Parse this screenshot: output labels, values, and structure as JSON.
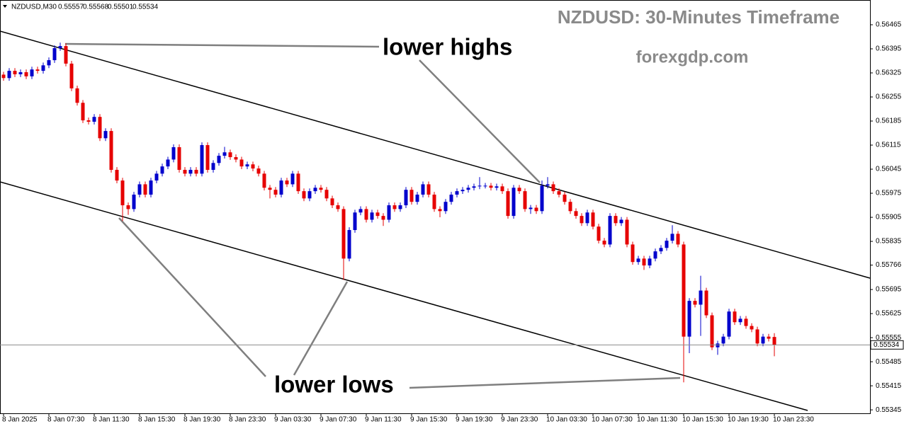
{
  "chart_data": {
    "type": "candlestick",
    "symbol": "NZDUSD,M30",
    "title": "NZDUSD: 30-Minutes Timeframe",
    "subtitle": "forexgdp.com",
    "annotations": [
      "lower highs",
      "lower lows"
    ],
    "up_color": "#0000cc",
    "down_color": "#e60000",
    "ylim": [
      0.55335,
      0.56537
    ],
    "yticks": [
      0.56465,
      0.56395,
      0.56325,
      0.56255,
      0.56185,
      0.56115,
      0.56045,
      0.55975,
      0.55905,
      0.55835,
      0.55766,
      0.55695,
      0.55625,
      0.55555,
      0.55485,
      0.55415,
      0.55345
    ],
    "xlim": [
      -0.625,
      152.875
    ],
    "xticks": [
      {
        "value": 0,
        "label": "8 Jan 2025"
      },
      {
        "value": 8,
        "label": "8 Jan 07:30"
      },
      {
        "value": 16,
        "label": "8 Jan 11:30"
      },
      {
        "value": 24,
        "label": "8 Jan 15:30"
      },
      {
        "value": 32,
        "label": "8 Jan 19:30"
      },
      {
        "value": 40,
        "label": "8 Jan 23:30"
      },
      {
        "value": 48,
        "label": "9 Jan 03:30"
      },
      {
        "value": 56,
        "label": "9 Jan 07:30"
      },
      {
        "value": 64,
        "label": "9 Jan 11:30"
      },
      {
        "value": 72,
        "label": "9 Jan 15:30"
      },
      {
        "value": 80,
        "label": "9 Jan 19:30"
      },
      {
        "value": 88,
        "label": "9 Jan 23:30"
      },
      {
        "value": 96,
        "label": "10 Jan 03:30"
      },
      {
        "value": 104,
        "label": "10 Jan 07:30"
      },
      {
        "value": 112,
        "label": "10 Jan 11:30"
      },
      {
        "value": 120,
        "label": "10 Jan 15:30"
      },
      {
        "value": 128,
        "label": "10 Jan 19:30"
      },
      {
        "value": 136,
        "label": "10 Jan 23:30"
      }
    ],
    "candles": [
      [
        0.5632,
        0.56328,
        0.56302,
        0.5631
      ],
      [
        0.5631,
        0.56339,
        0.56302,
        0.56331
      ],
      [
        0.56331,
        0.56339,
        0.56313,
        0.56321
      ],
      [
        0.56321,
        0.56335,
        0.56313,
        0.56327
      ],
      [
        0.56327,
        0.56335,
        0.56307,
        0.56315
      ],
      [
        0.56315,
        0.56343,
        0.56307,
        0.56335
      ],
      [
        0.56335,
        0.56343,
        0.56323,
        0.56331
      ],
      [
        0.56331,
        0.56355,
        0.56323,
        0.56347
      ],
      [
        0.56347,
        0.5637,
        0.56339,
        0.56362
      ],
      [
        0.56362,
        0.56405,
        0.56354,
        0.56397
      ],
      [
        0.56397,
        0.56413,
        0.56389,
        0.56403
      ],
      [
        0.56403,
        0.56411,
        0.56344,
        0.56352
      ],
      [
        0.56352,
        0.5636,
        0.56272,
        0.5628
      ],
      [
        0.5628,
        0.56288,
        0.5623,
        0.56238
      ],
      [
        0.56238,
        0.56246,
        0.56179,
        0.56187
      ],
      [
        0.56187,
        0.56195,
        0.56175,
        0.56183
      ],
      [
        0.56183,
        0.56205,
        0.56175,
        0.56197
      ],
      [
        0.56197,
        0.56205,
        0.56127,
        0.56135
      ],
      [
        0.56135,
        0.56164,
        0.56127,
        0.56156
      ],
      [
        0.56156,
        0.56164,
        0.56035,
        0.56043
      ],
      [
        0.56043,
        0.56051,
        0.56004,
        0.56012
      ],
      [
        0.56012,
        0.5602,
        0.55894,
        0.5594
      ],
      [
        0.5594,
        0.55948,
        0.55912,
        0.55929
      ],
      [
        0.55929,
        0.55979,
        0.55921,
        0.55971
      ],
      [
        0.55971,
        0.56009,
        0.55963,
        0.56001
      ],
      [
        0.56001,
        0.56009,
        0.55963,
        0.55971
      ],
      [
        0.55971,
        0.5602,
        0.55963,
        0.56012
      ],
      [
        0.56012,
        0.5604,
        0.56004,
        0.56032
      ],
      [
        0.56032,
        0.56061,
        0.56024,
        0.56053
      ],
      [
        0.56053,
        0.56081,
        0.56045,
        0.56073
      ],
      [
        0.56073,
        0.56117,
        0.56065,
        0.56109
      ],
      [
        0.56109,
        0.56117,
        0.56035,
        0.56043
      ],
      [
        0.56043,
        0.56051,
        0.56024,
        0.56032
      ],
      [
        0.56032,
        0.56051,
        0.56024,
        0.56043
      ],
      [
        0.56043,
        0.56051,
        0.56024,
        0.56032
      ],
      [
        0.56032,
        0.56123,
        0.56024,
        0.56115
      ],
      [
        0.56115,
        0.56123,
        0.56035,
        0.56043
      ],
      [
        0.56043,
        0.56071,
        0.56035,
        0.56063
      ],
      [
        0.56063,
        0.56092,
        0.56055,
        0.56084
      ],
      [
        0.56084,
        0.5611,
        0.56076,
        0.56094
      ],
      [
        0.56094,
        0.56102,
        0.56072,
        0.5608
      ],
      [
        0.5608,
        0.56088,
        0.56065,
        0.56073
      ],
      [
        0.56073,
        0.56081,
        0.56045,
        0.56053
      ],
      [
        0.56053,
        0.56067,
        0.56045,
        0.56059
      ],
      [
        0.56059,
        0.56067,
        0.56039,
        0.56047
      ],
      [
        0.56047,
        0.56055,
        0.56024,
        0.56032
      ],
      [
        0.56032,
        0.5604,
        0.55983,
        0.55991
      ],
      [
        0.55991,
        0.55999,
        0.5596,
        0.55985
      ],
      [
        0.55985,
        0.55993,
        0.55963,
        0.55971
      ],
      [
        0.55971,
        0.5602,
        0.55963,
        0.56012
      ],
      [
        0.56012,
        0.5602,
        0.55993,
        0.56001
      ],
      [
        0.56001,
        0.5604,
        0.55993,
        0.56032
      ],
      [
        0.56032,
        0.5604,
        0.55973,
        0.55981
      ],
      [
        0.55981,
        0.55989,
        0.55952,
        0.5596
      ],
      [
        0.5596,
        0.55989,
        0.55952,
        0.55981
      ],
      [
        0.55981,
        0.55999,
        0.55973,
        0.55991
      ],
      [
        0.55991,
        0.55999,
        0.55977,
        0.55985
      ],
      [
        0.55985,
        0.55993,
        0.55952,
        0.5596
      ],
      [
        0.5596,
        0.55968,
        0.55932,
        0.5594
      ],
      [
        0.5594,
        0.55948,
        0.55921,
        0.55929
      ],
      [
        0.55929,
        0.55937,
        0.55723,
        0.55785
      ],
      [
        0.55785,
        0.55876,
        0.55777,
        0.55868
      ],
      [
        0.55868,
        0.55927,
        0.5586,
        0.55919
      ],
      [
        0.55919,
        0.55937,
        0.55911,
        0.55929
      ],
      [
        0.55929,
        0.55937,
        0.5589,
        0.55898
      ],
      [
        0.55898,
        0.55927,
        0.5589,
        0.55919
      ],
      [
        0.55919,
        0.55927,
        0.55901,
        0.55909
      ],
      [
        0.55909,
        0.55917,
        0.5588,
        0.55898
      ],
      [
        0.55898,
        0.55948,
        0.5589,
        0.5594
      ],
      [
        0.5594,
        0.55948,
        0.55921,
        0.55929
      ],
      [
        0.55929,
        0.55948,
        0.55921,
        0.5594
      ],
      [
        0.5594,
        0.55993,
        0.55932,
        0.55985
      ],
      [
        0.55985,
        0.55993,
        0.55942,
        0.5595
      ],
      [
        0.5595,
        0.55979,
        0.55942,
        0.55971
      ],
      [
        0.55971,
        0.56009,
        0.55963,
        0.56001
      ],
      [
        0.56001,
        0.56009,
        0.55963,
        0.55971
      ],
      [
        0.55971,
        0.55979,
        0.55921,
        0.55929
      ],
      [
        0.55929,
        0.55937,
        0.55905,
        0.55923
      ],
      [
        0.55923,
        0.55958,
        0.55915,
        0.5595
      ],
      [
        0.5595,
        0.55979,
        0.55942,
        0.55971
      ],
      [
        0.55971,
        0.55989,
        0.55963,
        0.55981
      ],
      [
        0.55981,
        0.55993,
        0.55973,
        0.55985
      ],
      [
        0.55985,
        0.55999,
        0.55977,
        0.55991
      ],
      [
        0.55991,
        0.56003,
        0.55983,
        0.55995
      ],
      [
        0.55995,
        0.56022,
        0.55987,
        0.55997
      ],
      [
        0.55997,
        0.56005,
        0.55989,
        0.55997
      ],
      [
        0.55997,
        0.56005,
        0.55983,
        0.55991
      ],
      [
        0.55991,
        0.56003,
        0.55983,
        0.55995
      ],
      [
        0.55995,
        0.56003,
        0.55973,
        0.55981
      ],
      [
        0.55981,
        0.55989,
        0.55901,
        0.55909
      ],
      [
        0.55909,
        0.55999,
        0.55901,
        0.55991
      ],
      [
        0.55991,
        0.55999,
        0.55973,
        0.55981
      ],
      [
        0.55981,
        0.55989,
        0.55921,
        0.55929
      ],
      [
        0.55929,
        0.55941,
        0.55915,
        0.55933
      ],
      [
        0.55933,
        0.55941,
        0.55915,
        0.55923
      ],
      [
        0.55923,
        0.56012,
        0.55915,
        0.55997
      ],
      [
        0.55997,
        0.56022,
        0.55989,
        0.56001
      ],
      [
        0.56001,
        0.56009,
        0.55973,
        0.55981
      ],
      [
        0.55981,
        0.55989,
        0.55963,
        0.55971
      ],
      [
        0.55971,
        0.55979,
        0.55942,
        0.5595
      ],
      [
        0.5595,
        0.55958,
        0.55915,
        0.55923
      ],
      [
        0.55923,
        0.55931,
        0.55901,
        0.55909
      ],
      [
        0.55909,
        0.55917,
        0.5588,
        0.55888
      ],
      [
        0.55888,
        0.55927,
        0.5588,
        0.55919
      ],
      [
        0.55919,
        0.55927,
        0.5587,
        0.55878
      ],
      [
        0.55878,
        0.55886,
        0.55829,
        0.55837
      ],
      [
        0.55837,
        0.55845,
        0.55818,
        0.55826
      ],
      [
        0.55826,
        0.55917,
        0.55818,
        0.55909
      ],
      [
        0.55909,
        0.55917,
        0.5588,
        0.55888
      ],
      [
        0.55888,
        0.55906,
        0.5588,
        0.55898
      ],
      [
        0.55898,
        0.55906,
        0.55818,
        0.55826
      ],
      [
        0.55826,
        0.55834,
        0.55767,
        0.55775
      ],
      [
        0.55775,
        0.55793,
        0.55767,
        0.55785
      ],
      [
        0.55785,
        0.55793,
        0.55752,
        0.55765
      ],
      [
        0.55765,
        0.55793,
        0.55757,
        0.55785
      ],
      [
        0.55785,
        0.55814,
        0.55777,
        0.55806
      ],
      [
        0.55806,
        0.55824,
        0.55798,
        0.55816
      ],
      [
        0.55816,
        0.55845,
        0.55808,
        0.55837
      ],
      [
        0.55837,
        0.55882,
        0.55829,
        0.55857
      ],
      [
        0.55857,
        0.55865,
        0.55818,
        0.55826
      ],
      [
        0.55826,
        0.55834,
        0.55425,
        0.55558
      ],
      [
        0.55558,
        0.5567,
        0.5551,
        0.55662
      ],
      [
        0.55662,
        0.5567,
        0.55643,
        0.55651
      ],
      [
        0.55651,
        0.55735,
        0.5556,
        0.55692
      ],
      [
        0.55692,
        0.557,
        0.55612,
        0.5562
      ],
      [
        0.5562,
        0.55628,
        0.55519,
        0.55527
      ],
      [
        0.55527,
        0.55546,
        0.55505,
        0.55538
      ],
      [
        0.55538,
        0.55566,
        0.5553,
        0.55558
      ],
      [
        0.55558,
        0.55639,
        0.5555,
        0.55631
      ],
      [
        0.55631,
        0.55639,
        0.55592,
        0.556
      ],
      [
        0.556,
        0.55618,
        0.55592,
        0.5561
      ],
      [
        0.5561,
        0.55618,
        0.55581,
        0.55589
      ],
      [
        0.55589,
        0.55597,
        0.55571,
        0.55579
      ],
      [
        0.55579,
        0.55587,
        0.5553,
        0.55538
      ],
      [
        0.55538,
        0.55566,
        0.5553,
        0.55558
      ],
      [
        0.55558,
        0.55566,
        0.55544,
        0.55552
      ],
      [
        0.55557,
        0.55568,
        0.55501,
        0.55534
      ]
    ]
  }
}
